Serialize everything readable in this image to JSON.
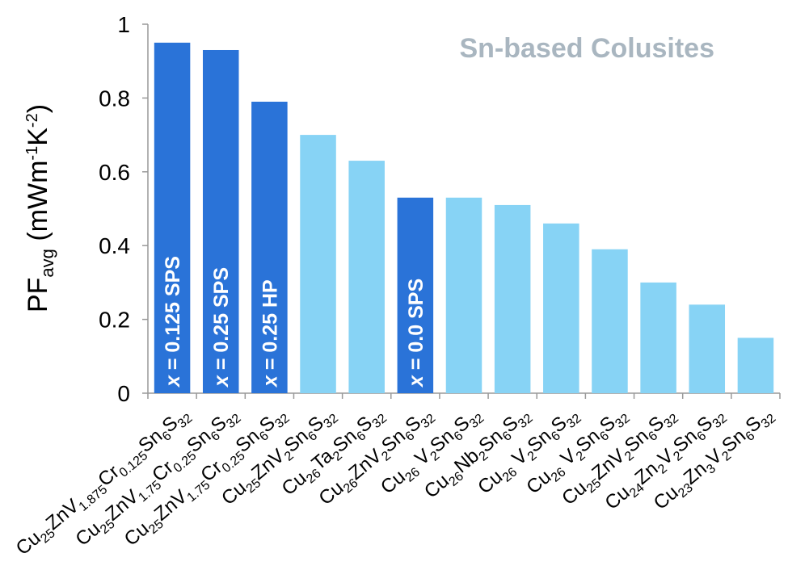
{
  "chart_data": {
    "type": "bar",
    "title": "Sn-based Colusites",
    "ylabel": {
      "main": "PF",
      "sub": "avg",
      "units": "(mWm",
      "exp1": "-1",
      "mid": "K",
      "exp2": "-2",
      "close": ")"
    },
    "ylim": [
      0,
      1
    ],
    "yticks": [
      "0",
      "0.2",
      "0.4",
      "0.6",
      "0.8",
      "1"
    ],
    "grid": false,
    "categories": [
      [
        [
          "Cu",
          false
        ],
        [
          "25",
          true
        ],
        [
          "ZnV",
          false
        ],
        [
          "1.875",
          true
        ],
        [
          "Cr",
          false
        ],
        [
          "0.125",
          true
        ],
        [
          "Sn",
          false
        ],
        [
          "6",
          true
        ],
        [
          "S",
          false
        ],
        [
          "32",
          true
        ]
      ],
      [
        [
          "Cu",
          false
        ],
        [
          "25",
          true
        ],
        [
          "ZnV",
          false
        ],
        [
          "1.75",
          true
        ],
        [
          "Cr",
          false
        ],
        [
          "0.25",
          true
        ],
        [
          "Sn",
          false
        ],
        [
          "6",
          true
        ],
        [
          "S",
          false
        ],
        [
          "32",
          true
        ]
      ],
      [
        [
          "Cu",
          false
        ],
        [
          "25",
          true
        ],
        [
          "ZnV",
          false
        ],
        [
          "1.75",
          true
        ],
        [
          "Cr",
          false
        ],
        [
          "0.25",
          true
        ],
        [
          "Sn",
          false
        ],
        [
          "6",
          true
        ],
        [
          "S",
          false
        ],
        [
          "32",
          true
        ]
      ],
      [
        [
          "Cu",
          false
        ],
        [
          "25",
          true
        ],
        [
          "ZnV",
          false
        ],
        [
          "2",
          true
        ],
        [
          "Sn",
          false
        ],
        [
          "6",
          true
        ],
        [
          "S",
          false
        ],
        [
          "32",
          true
        ]
      ],
      [
        [
          "Cu",
          false
        ],
        [
          "26",
          true
        ],
        [
          "Ta",
          false
        ],
        [
          "2",
          true
        ],
        [
          "Sn",
          false
        ],
        [
          "6",
          true
        ],
        [
          "S",
          false
        ],
        [
          "32",
          true
        ]
      ],
      [
        [
          "Cu",
          false
        ],
        [
          "26",
          true
        ],
        [
          "ZnV",
          false
        ],
        [
          "2",
          true
        ],
        [
          "Sn",
          false
        ],
        [
          "6",
          true
        ],
        [
          "S",
          false
        ],
        [
          "32",
          true
        ]
      ],
      [
        [
          "Cu",
          false
        ],
        [
          "26",
          true
        ],
        [
          " V",
          false
        ],
        [
          "2",
          true
        ],
        [
          "Sn",
          false
        ],
        [
          "6",
          true
        ],
        [
          "S",
          false
        ],
        [
          "32",
          true
        ]
      ],
      [
        [
          "Cu",
          false
        ],
        [
          "26",
          true
        ],
        [
          "Nb",
          false
        ],
        [
          "2",
          true
        ],
        [
          "Sn",
          false
        ],
        [
          "6",
          true
        ],
        [
          "S",
          false
        ],
        [
          "32",
          true
        ]
      ],
      [
        [
          "Cu",
          false
        ],
        [
          "26",
          true
        ],
        [
          " V",
          false
        ],
        [
          "2",
          true
        ],
        [
          "Sn",
          false
        ],
        [
          "6",
          true
        ],
        [
          "S",
          false
        ],
        [
          "32",
          true
        ]
      ],
      [
        [
          "Cu",
          false
        ],
        [
          "26",
          true
        ],
        [
          " V",
          false
        ],
        [
          "2",
          true
        ],
        [
          "Sn",
          false
        ],
        [
          "6",
          true
        ],
        [
          "S",
          false
        ],
        [
          "32",
          true
        ]
      ],
      [
        [
          "Cu",
          false
        ],
        [
          "25",
          true
        ],
        [
          "ZnV",
          false
        ],
        [
          "2",
          true
        ],
        [
          "Sn",
          false
        ],
        [
          "6",
          true
        ],
        [
          "S",
          false
        ],
        [
          "32",
          true
        ]
      ],
      [
        [
          "Cu",
          false
        ],
        [
          "24",
          true
        ],
        [
          "Zn",
          false
        ],
        [
          "2",
          true
        ],
        [
          "V",
          false
        ],
        [
          "2",
          true
        ],
        [
          "Sn",
          false
        ],
        [
          "6",
          true
        ],
        [
          "S",
          false
        ],
        [
          "32",
          true
        ]
      ],
      [
        [
          "Cu",
          false
        ],
        [
          "23",
          true
        ],
        [
          "Zn",
          false
        ],
        [
          "3",
          true
        ],
        [
          "V",
          false
        ],
        [
          "2",
          true
        ],
        [
          "Sn",
          false
        ],
        [
          "6",
          true
        ],
        [
          "S",
          false
        ],
        [
          "32",
          true
        ]
      ]
    ],
    "values": [
      0.95,
      0.93,
      0.79,
      0.7,
      0.63,
      0.53,
      0.53,
      0.51,
      0.46,
      0.39,
      0.3,
      0.24,
      0.15
    ],
    "highlight": [
      true,
      true,
      true,
      false,
      false,
      true,
      false,
      false,
      false,
      false,
      false,
      false,
      false
    ],
    "bar_labels": [
      "x = 0.125 SPS",
      "x = 0.25 SPS",
      "x = 0.25 HP",
      "",
      "",
      "x = 0.0 SPS",
      "",
      "",
      "",
      "",
      "",
      "",
      ""
    ],
    "colors": {
      "highlight": "#2a73d8",
      "normal": "#87d3f5",
      "title": "#a9b6c0",
      "axis": "#999999"
    }
  }
}
